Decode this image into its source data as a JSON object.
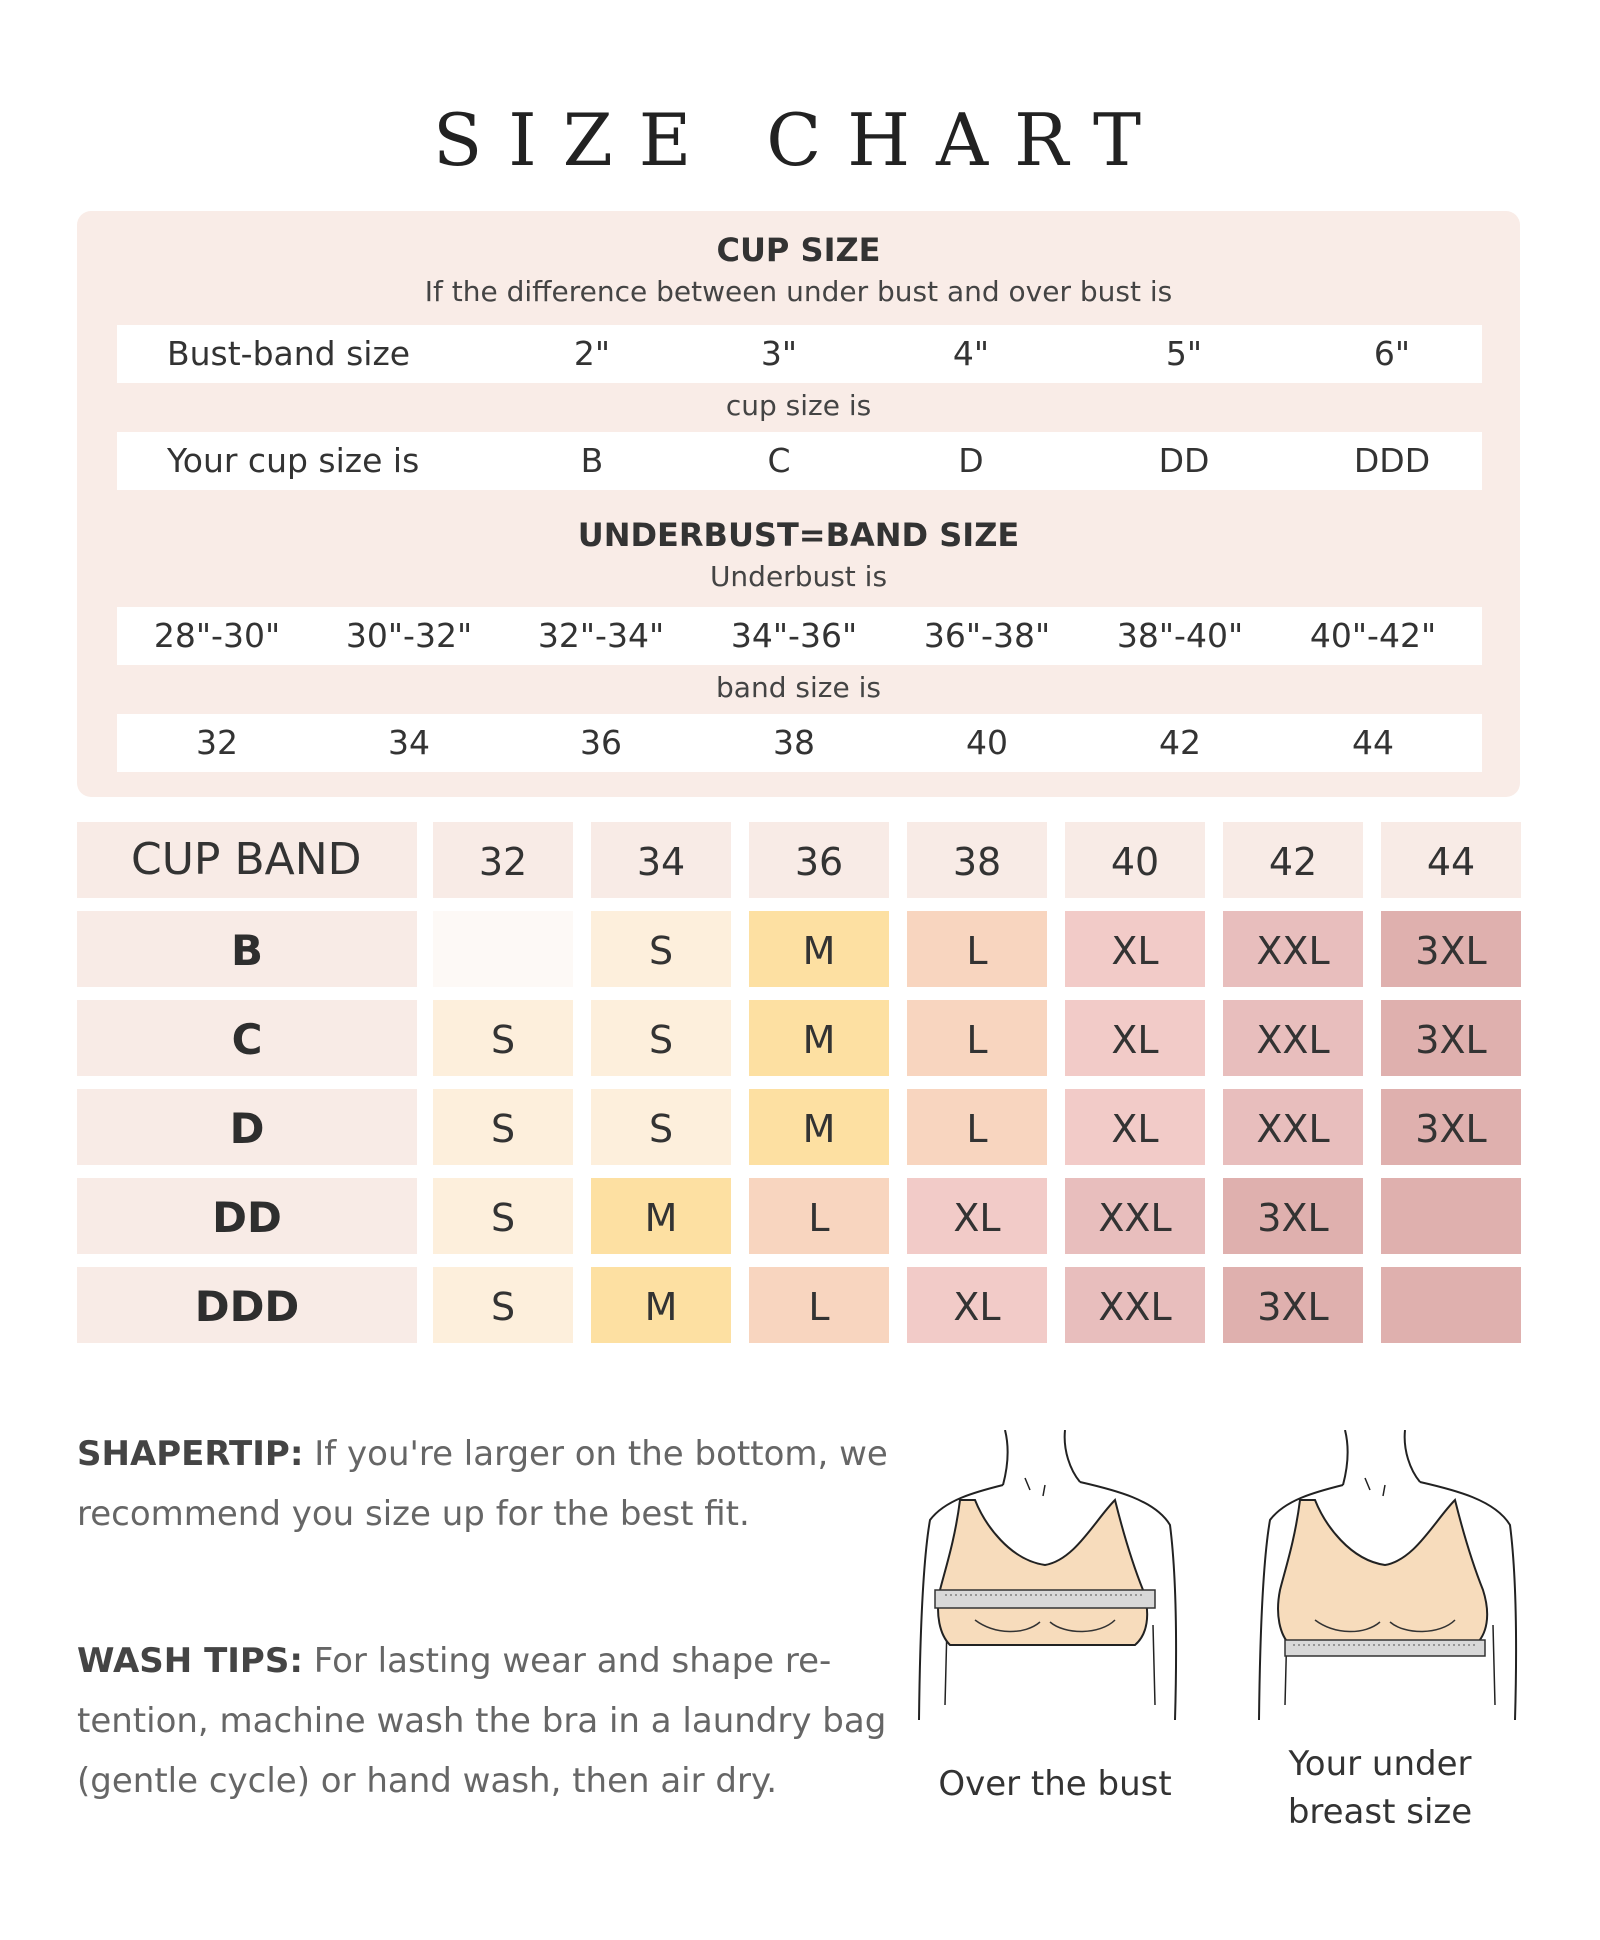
{
  "title": "SIZE CHART",
  "cup_section": {
    "heading": "CUP SIZE",
    "subheading": "If the difference between under bust and over bust is",
    "row1_label": "Bust-band size",
    "row1_values": [
      "2\"",
      "3\"",
      "4\"",
      "5\"",
      "6\""
    ],
    "between_label": "cup size is",
    "row2_label": "Your cup size is",
    "row2_values": [
      "B",
      "C",
      "D",
      "DD",
      "DDD"
    ]
  },
  "band_section": {
    "heading": "UNDERBUST=BAND SIZE",
    "subheading": "Underbust is",
    "underbust_values": [
      "28\"-30\"",
      "30\"-32\"",
      "32\"-34\"",
      "34\"-36\"",
      "36\"-38\"",
      "38\"-40\"",
      "40\"-42\""
    ],
    "between_label": "band size is",
    "band_values": [
      "32",
      "34",
      "36",
      "38",
      "40",
      "42",
      "44"
    ]
  },
  "size_table": {
    "corner_label": "CUP BAND",
    "columns": [
      "32",
      "34",
      "36",
      "38",
      "40",
      "42",
      "44"
    ],
    "rows": [
      {
        "cup": "B",
        "sizes": [
          "",
          "S",
          "M",
          "L",
          "XL",
          "XXL",
          "3XL"
        ]
      },
      {
        "cup": "C",
        "sizes": [
          "S",
          "S",
          "M",
          "L",
          "XL",
          "XXL",
          "3XL"
        ]
      },
      {
        "cup": "D",
        "sizes": [
          "S",
          "S",
          "M",
          "L",
          "XL",
          "XXL",
          "3XL"
        ]
      },
      {
        "cup": "DD",
        "sizes": [
          "S",
          "M",
          "L",
          "XL",
          "XXL",
          "3XL",
          ""
        ]
      },
      {
        "cup": "DDD",
        "sizes": [
          "S",
          "M",
          "L",
          "XL",
          "XXL",
          "3XL",
          ""
        ]
      }
    ],
    "size_colors": {
      "": "#fdf9f6",
      "S": "#fdefdc",
      "M": "#fde0a2",
      "L": "#f8d5bf",
      "XL": "#f2cbc8",
      "XXL": "#e8bebd",
      "3XL": "#dfb0ae"
    },
    "empty_row_end_color": "#dfb0ae"
  },
  "tips": {
    "shapertip_label": "SHAPERTIP:",
    "shapertip_text": " If you're larger on the bottom, we recommend you size up for the best fit.",
    "wash_label": "WASH TIPS:",
    "wash_text": " For lasting wear and shape re-tention, machine wash the bra in a laundry bag (gentle cycle) or hand wash, then air dry."
  },
  "figures": {
    "left_caption": "Over the bust",
    "right_caption_line1": "Your under",
    "right_caption_line2": "breast size"
  }
}
